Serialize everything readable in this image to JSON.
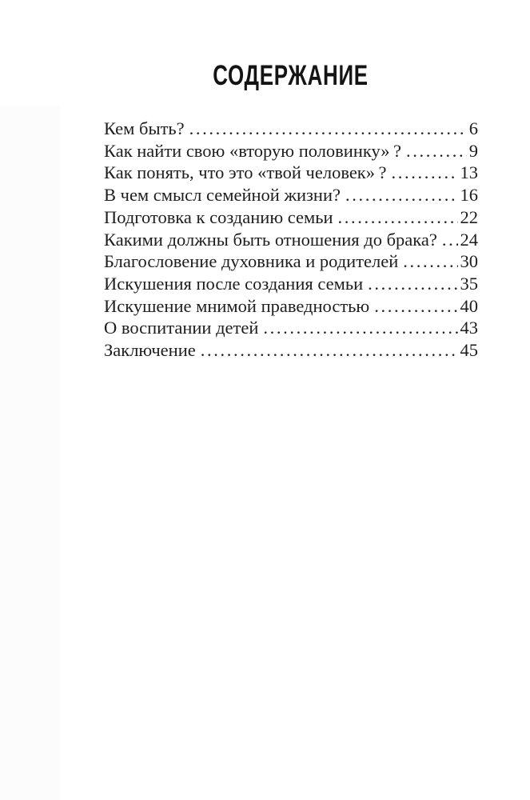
{
  "page": {
    "title": "СОДЕРЖАНИЕ",
    "toc_entries": [
      {
        "label": "Кем быть?",
        "page": "6"
      },
      {
        "label": "Как найти свою «вторую половинку» ?",
        "page": "9"
      },
      {
        "label": "Как понять, что это «твой человек» ?",
        "page": "13"
      },
      {
        "label": "В чем смысл семейной жизни?",
        "page": "16"
      },
      {
        "label": "Подготовка к созданию семьи",
        "page": "22"
      },
      {
        "label": "Какими должны быть отношения до брака?",
        "page": "24"
      },
      {
        "label": "Благословение духовника и родителей",
        "page": "30"
      },
      {
        "label": "Искушения после создания семьи",
        "page": "35"
      },
      {
        "label": "Искушение мнимой праведностью",
        "page": "40"
      },
      {
        "label": "О воспитании детей",
        "page": "43"
      },
      {
        "label": "Заключение",
        "page": "45"
      }
    ]
  }
}
